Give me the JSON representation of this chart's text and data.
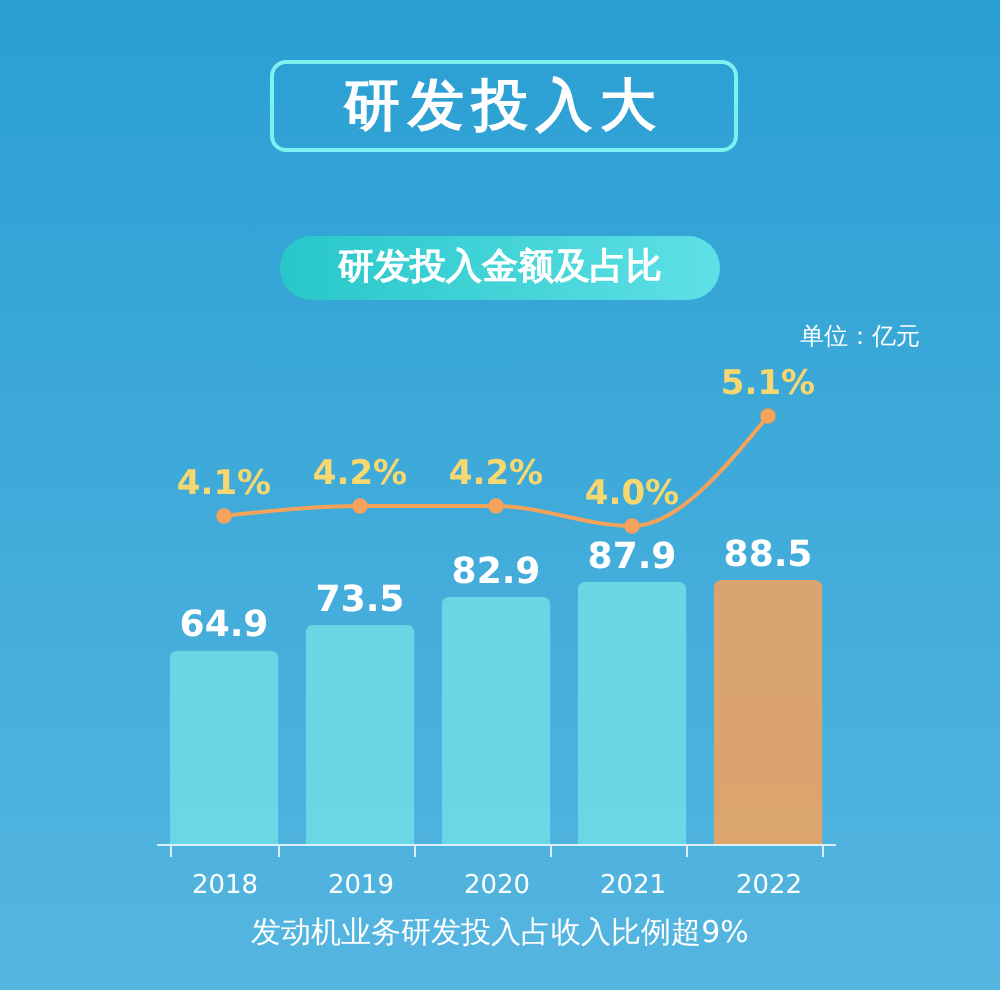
{
  "chart_data": [
    {
      "type": "bar",
      "annotations": [
        "单位：亿元",
        "发动机业务研发投入占收入比例超9%"
      ],
      "categories": [
        "2018",
        "2019",
        "2020",
        "2021",
        "2022"
      ],
      "colors": [
        "#6fdde6",
        "#6fdde6",
        "#6fdde6",
        "#6fdde6",
        "#f5a25a"
      ],
      "values": [
        64.9,
        73.5,
        82.9,
        87.9,
        88.5
      ],
      "data_labels": true,
      "tick_labels": "x"
    },
    {
      "type": "line",
      "title": "研发投入大",
      "subtitle": "研发投入金额及占比",
      "categories": [
        "2018",
        "2019",
        "2020",
        "2021",
        "2022"
      ],
      "color": "#f5a25a",
      "marker": "circle",
      "line_style": "solid",
      "values": [
        4.1,
        4.2,
        4.2,
        4.0,
        5.1
      ],
      "value_labels": [
        "4.1%",
        "4.2%",
        "4.2%",
        "4.0%",
        "5.1%"
      ],
      "tick_labels": false
    }
  ]
}
